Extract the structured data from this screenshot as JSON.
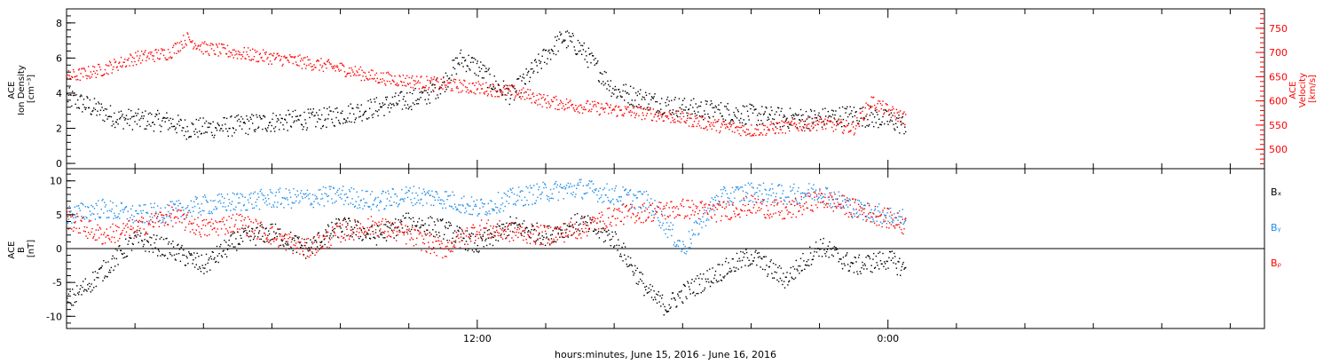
{
  "chart_data": [
    {
      "type": "scatter",
      "panel": "top",
      "xlabel": "hours:minutes, June 15, 2016 - June 16, 2016",
      "x_tick_labels": [
        "12:00",
        "0:00"
      ],
      "xlim_hours": [
        0,
        35
      ],
      "left_axis": {
        "label_lines": [
          "ACE",
          "Ion Density",
          "[cm⁻³]"
        ],
        "ylim": [
          -0.3,
          8.8
        ],
        "ticks": [
          0,
          2,
          4,
          6,
          8
        ],
        "color": "#000000"
      },
      "right_axis": {
        "label_lines": [
          "ACE",
          "Velocity",
          "[km/s]"
        ],
        "ylim": [
          460,
          790
        ],
        "ticks": [
          500,
          550,
          600,
          650,
          700,
          750
        ],
        "color": "#ff0000"
      },
      "series": [
        {
          "color": "#000000",
          "axis": "left",
          "x": [
            0.0,
            1.5,
            3.0,
            3.5,
            4.5,
            6.0,
            7.5,
            9.0,
            10.5,
            11.0,
            11.5,
            12.0,
            12.5,
            13.0,
            14.0,
            14.5,
            15.0,
            16.0,
            17.0,
            18.0,
            19.0,
            20.0,
            21.0,
            22.0,
            23.0,
            24.0,
            24.5
          ],
          "y": [
            3.8,
            2.6,
            2.4,
            2.0,
            2.1,
            2.4,
            2.6,
            3.2,
            3.9,
            4.6,
            6.0,
            5.5,
            4.5,
            3.9,
            6.2,
            7.2,
            6.6,
            4.2,
            3.6,
            3.2,
            3.0,
            2.8,
            2.6,
            2.6,
            2.8,
            2.5,
            2.2
          ]
        },
        {
          "color": "#ff0000",
          "axis": "right",
          "x": [
            0.0,
            1.0,
            2.0,
            3.0,
            3.5,
            4.0,
            5.0,
            6.0,
            7.0,
            8.0,
            9.0,
            10.0,
            11.0,
            12.0,
            13.0,
            13.5,
            14.0,
            15.0,
            16.0,
            17.0,
            18.0,
            19.0,
            20.0,
            21.0,
            22.0,
            23.0,
            23.5,
            24.0,
            24.5
          ],
          "y": [
            650,
            665,
            690,
            700,
            730,
            710,
            700,
            690,
            680,
            668,
            650,
            642,
            635,
            628,
            620,
            612,
            600,
            590,
            582,
            575,
            565,
            550,
            540,
            548,
            555,
            545,
            600,
            580,
            565
          ]
        }
      ]
    },
    {
      "type": "scatter",
      "panel": "bottom",
      "xlabel": "hours:minutes, June 15, 2016 - June 16, 2016",
      "x_tick_labels": [
        "12:00",
        "0:00"
      ],
      "xlim_hours": [
        0,
        35
      ],
      "axis": {
        "label_lines": [
          "ACE",
          "B",
          "[nT]"
        ],
        "ylim": [
          -11.8,
          11.8
        ],
        "ticks": [
          -10,
          -5,
          0,
          5,
          10
        ],
        "zero_line": true
      },
      "legend_position": "right",
      "series": [
        {
          "name": "Bₓ",
          "color": "#000000",
          "x": [
            0.0,
            1.0,
            2.0,
            3.0,
            4.0,
            5.0,
            6.0,
            7.0,
            8.0,
            9.0,
            10.0,
            11.0,
            12.0,
            13.0,
            14.0,
            15.0,
            16.0,
            17.0,
            17.5,
            18.0,
            19.0,
            20.0,
            21.0,
            22.0,
            23.0,
            24.0,
            24.5
          ],
          "y": [
            -8.0,
            -3.5,
            1.5,
            0.0,
            -2.5,
            1.5,
            2.5,
            0.0,
            3.5,
            2.0,
            4.0,
            3.0,
            0.5,
            3.5,
            2.0,
            4.0,
            1.5,
            -6.5,
            -8.5,
            -6.5,
            -3.5,
            -1.0,
            -4.5,
            0.5,
            -2.5,
            -1.5,
            -3.0
          ]
        },
        {
          "name": "Bᵧ",
          "color": "#1e8ce6",
          "x": [
            0.0,
            1.0,
            2.0,
            3.0,
            4.0,
            5.0,
            6.0,
            7.0,
            8.0,
            9.0,
            10.0,
            11.0,
            12.0,
            13.0,
            14.0,
            15.0,
            16.0,
            17.0,
            18.0,
            19.0,
            20.0,
            21.0,
            22.0,
            23.0,
            24.0,
            24.5
          ],
          "y": [
            5.0,
            6.0,
            5.0,
            5.5,
            6.5,
            7.0,
            7.5,
            7.5,
            8.0,
            7.0,
            8.0,
            7.5,
            6.0,
            7.5,
            8.5,
            9.0,
            8.0,
            7.0,
            0.0,
            7.5,
            8.5,
            8.0,
            8.5,
            6.0,
            5.0,
            4.5
          ]
        },
        {
          "name": "Bᵨ",
          "color": "#ff0000",
          "x": [
            0.0,
            1.0,
            2.0,
            3.0,
            4.0,
            5.0,
            6.0,
            7.0,
            8.0,
            9.0,
            10.0,
            11.0,
            12.0,
            13.0,
            14.0,
            15.0,
            16.0,
            17.0,
            18.0,
            19.0,
            20.0,
            21.0,
            22.0,
            23.0,
            24.0,
            24.5
          ],
          "y": [
            4.5,
            2.0,
            3.0,
            5.0,
            3.0,
            4.0,
            2.0,
            0.0,
            2.5,
            3.5,
            2.0,
            0.0,
            3.0,
            2.5,
            2.0,
            3.0,
            5.0,
            5.5,
            6.0,
            5.5,
            6.5,
            5.5,
            7.5,
            6.0,
            4.5,
            3.5
          ]
        }
      ]
    }
  ]
}
